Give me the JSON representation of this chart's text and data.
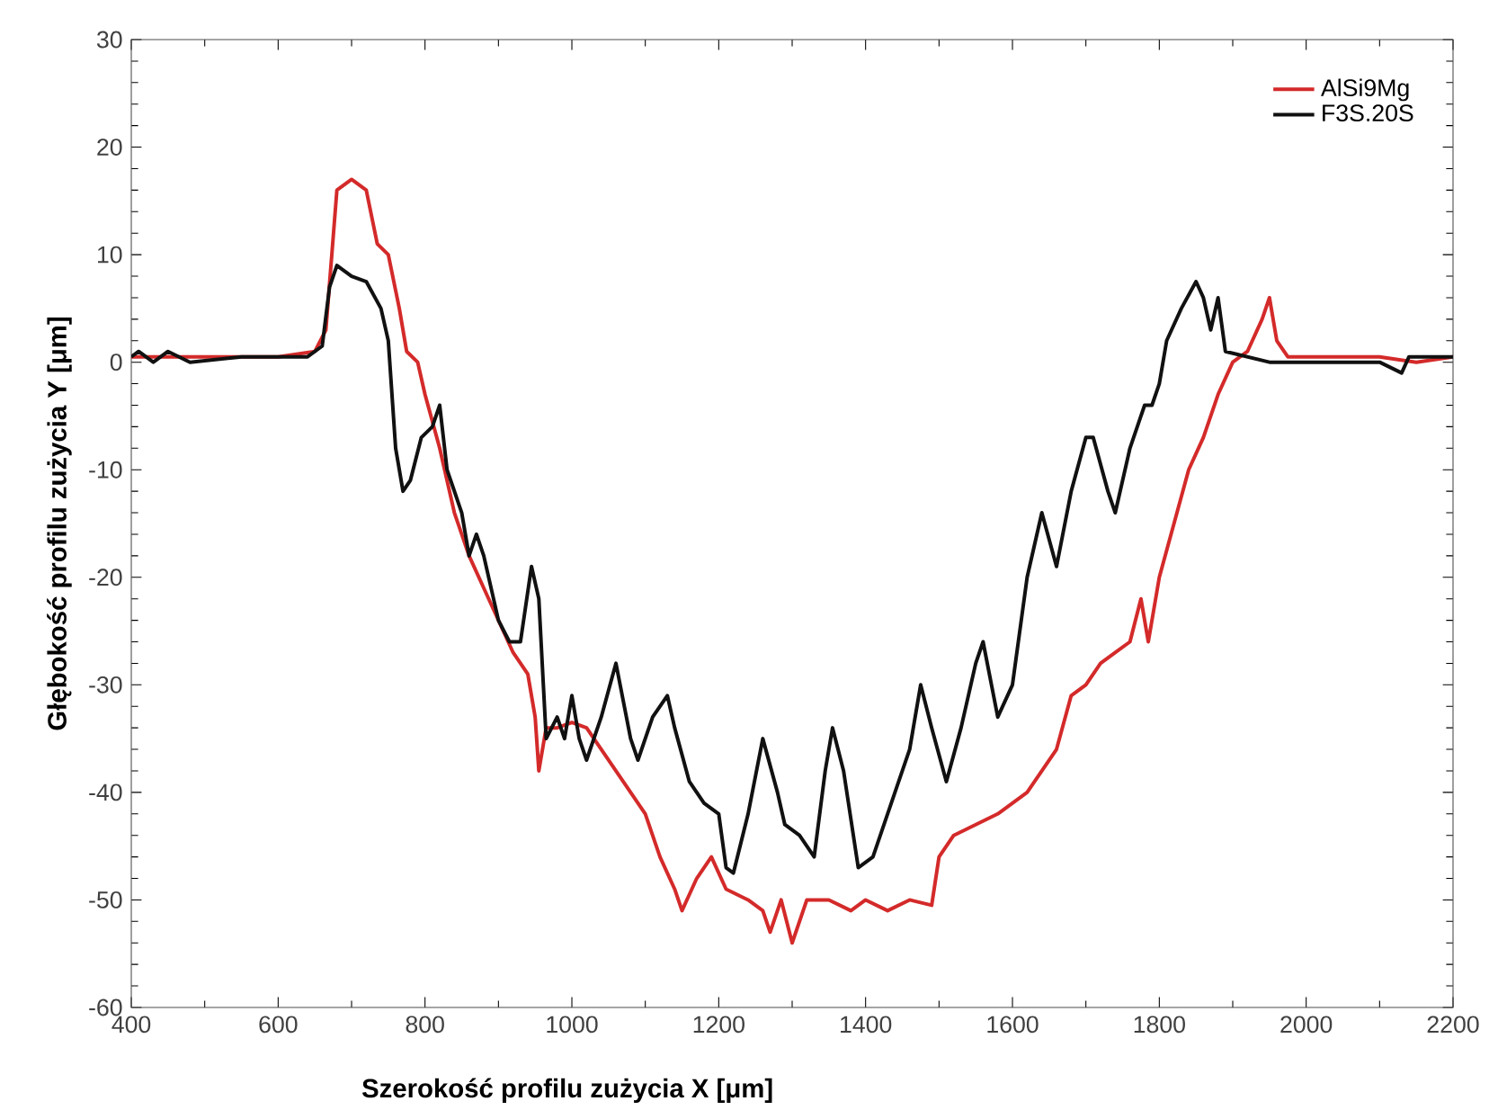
{
  "chart_data": {
    "type": "line",
    "xlabel": "Szerokość profilu zużycia  X [μm]",
    "ylabel": "Głębokość profilu zużycia  Y [μm]",
    "xlim": [
      400,
      2200
    ],
    "ylim": [
      -60,
      30
    ],
    "xticks": [
      400,
      600,
      800,
      1000,
      1200,
      1400,
      1600,
      1800,
      2000,
      2200
    ],
    "yticks": [
      -60,
      -50,
      -40,
      -30,
      -20,
      -10,
      0,
      10,
      20,
      30
    ],
    "grid": false,
    "legend": "top right",
    "marker": "none",
    "line_style": "solid",
    "series": [
      {
        "name": "AlSi9Mg",
        "color": "#d42a2a",
        "x": [
          400,
          500,
          600,
          650,
          665,
          680,
          700,
          720,
          735,
          750,
          765,
          775,
          790,
          800,
          820,
          840,
          860,
          880,
          900,
          920,
          940,
          950,
          955,
          965,
          980,
          1000,
          1020,
          1040,
          1060,
          1080,
          1100,
          1120,
          1140,
          1150,
          1170,
          1190,
          1210,
          1240,
          1260,
          1270,
          1285,
          1300,
          1320,
          1350,
          1380,
          1400,
          1430,
          1460,
          1490,
          1500,
          1520,
          1550,
          1580,
          1600,
          1620,
          1640,
          1660,
          1680,
          1700,
          1720,
          1740,
          1760,
          1775,
          1785,
          1800,
          1820,
          1840,
          1860,
          1880,
          1900,
          1920,
          1940,
          1950,
          1960,
          1975,
          2000,
          2050,
          2100,
          2150,
          2200
        ],
        "values": [
          0.5,
          0.5,
          0.5,
          1,
          3,
          16,
          17,
          16,
          11,
          10,
          5,
          1,
          0,
          -3,
          -8,
          -14,
          -18,
          -21,
          -24,
          -27,
          -29,
          -33,
          -38,
          -34,
          -34,
          -33.5,
          -34,
          -36,
          -38,
          -40,
          -42,
          -46,
          -49,
          -51,
          -48,
          -46,
          -49,
          -50,
          -51,
          -53,
          -50,
          -54,
          -50,
          -50,
          -51,
          -50,
          -51,
          -50,
          -50.5,
          -46,
          -44,
          -43,
          -42,
          -41,
          -40,
          -38,
          -36,
          -31,
          -30,
          -28,
          -27,
          -26,
          -22,
          -26,
          -20,
          -15,
          -10,
          -7,
          -3,
          0,
          1,
          4,
          6,
          2,
          0.5,
          0.5,
          0.5,
          0.5,
          0,
          0.5
        ]
      },
      {
        "name": "F3S.20S",
        "color": "#111111",
        "x": [
          400,
          410,
          430,
          450,
          480,
          550,
          600,
          640,
          660,
          670,
          680,
          700,
          720,
          740,
          750,
          760,
          770,
          780,
          795,
          810,
          820,
          830,
          850,
          860,
          870,
          880,
          900,
          915,
          930,
          945,
          955,
          965,
          980,
          990,
          1000,
          1010,
          1020,
          1040,
          1060,
          1080,
          1090,
          1110,
          1130,
          1140,
          1160,
          1180,
          1200,
          1210,
          1220,
          1240,
          1260,
          1280,
          1290,
          1310,
          1330,
          1345,
          1355,
          1370,
          1390,
          1410,
          1440,
          1460,
          1475,
          1490,
          1510,
          1530,
          1550,
          1560,
          1580,
          1600,
          1620,
          1640,
          1660,
          1680,
          1700,
          1710,
          1730,
          1740,
          1760,
          1780,
          1790,
          1800,
          1810,
          1830,
          1850,
          1860,
          1870,
          1880,
          1890,
          1920,
          1950,
          2000,
          2050,
          2100,
          2130,
          2140,
          2200
        ],
        "values": [
          0.5,
          1,
          0,
          1,
          0,
          0.5,
          0.5,
          0.5,
          1.5,
          7,
          9,
          8,
          7.5,
          5,
          2,
          -8,
          -12,
          -11,
          -7,
          -6,
          -4,
          -10,
          -14,
          -18,
          -16,
          -18,
          -24,
          -26,
          -26,
          -19,
          -22,
          -35,
          -33,
          -35,
          -31,
          -35,
          -37,
          -33,
          -28,
          -35,
          -37,
          -33,
          -31,
          -34,
          -39,
          -41,
          -42,
          -47,
          -47.5,
          -42,
          -35,
          -40,
          -43,
          -44,
          -46,
          -38,
          -34,
          -38,
          -47,
          -46,
          -40,
          -36,
          -30,
          -34,
          -39,
          -34,
          -28,
          -26,
          -33,
          -30,
          -20,
          -14,
          -19,
          -12,
          -7,
          -7,
          -12,
          -14,
          -8,
          -4,
          -4,
          -2,
          2,
          5,
          7.5,
          6,
          3,
          6,
          1,
          0.5,
          0,
          0,
          0,
          0,
          -1,
          0.5,
          0.5
        ]
      }
    ]
  }
}
